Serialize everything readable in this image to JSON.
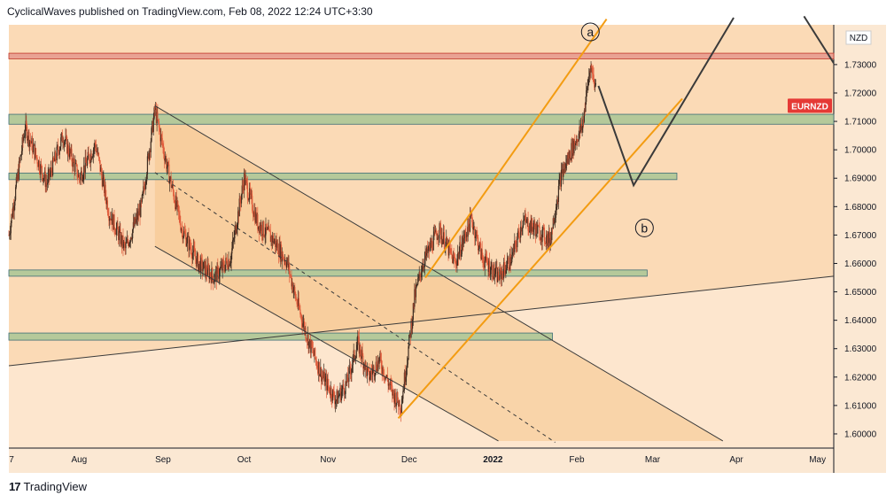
{
  "header": {
    "text": "CyclicalWaves published on TradingView.com, Feb 08, 2022 12:24 UTC+3:30"
  },
  "footer": {
    "brand": "TradingView",
    "logo": "tv-logo-icon"
  },
  "colors": {
    "background_band": "#fbd6ad",
    "zone_fill": "#f6c48a",
    "support_zone": "#b5c99a",
    "resistance_zone": "#e9a293",
    "channel_orange": "#f39c12",
    "wave_line": "#3a3a3a",
    "candle_up": "#3d2b20",
    "candle_down": "#e05a3a",
    "symbol_badge": "#e53935"
  },
  "chart_data": {
    "type": "candlestick",
    "symbol": "EURNZD",
    "currency": "NZD",
    "ylim": [
      1.595,
      1.744
    ],
    "y_ticks": [
      "1.60000",
      "1.61000",
      "1.62000",
      "1.63000",
      "1.64000",
      "1.65000",
      "1.66000",
      "1.67000",
      "1.68000",
      "1.69000",
      "1.70000",
      "1.71000",
      "1.72000",
      "1.73000"
    ],
    "x_ticks": [
      {
        "label": "7",
        "date": "2021-07-07"
      },
      {
        "label": "Aug",
        "date": "2021-08-01"
      },
      {
        "label": "Sep",
        "date": "2021-09-01"
      },
      {
        "label": "Oct",
        "date": "2021-10-01"
      },
      {
        "label": "Nov",
        "date": "2021-11-01"
      },
      {
        "label": "Dec",
        "date": "2021-12-01"
      },
      {
        "label": "2022",
        "date": "2022-01-01",
        "bold": true
      },
      {
        "label": "Feb",
        "date": "2022-02-01"
      },
      {
        "label": "Mar",
        "date": "2022-03-01"
      },
      {
        "label": "Apr",
        "date": "2022-04-01"
      },
      {
        "label": "May",
        "date": "2022-05-01"
      }
    ],
    "x_range": [
      "2021-07-06",
      "2022-05-07"
    ],
    "price_path": [
      [
        "2021-07-06",
        1.67
      ],
      [
        "2021-07-12",
        1.708
      ],
      [
        "2021-07-20",
        1.688
      ],
      [
        "2021-07-26",
        1.705
      ],
      [
        "2021-08-01",
        1.69
      ],
      [
        "2021-08-07",
        1.702
      ],
      [
        "2021-08-12",
        1.678
      ],
      [
        "2021-08-18",
        1.665
      ],
      [
        "2021-08-24",
        1.68
      ],
      [
        "2021-08-29",
        1.714
      ],
      [
        "2021-09-03",
        1.692
      ],
      [
        "2021-09-08",
        1.672
      ],
      [
        "2021-09-14",
        1.66
      ],
      [
        "2021-09-20",
        1.655
      ],
      [
        "2021-09-26",
        1.662
      ],
      [
        "2021-10-01",
        1.69
      ],
      [
        "2021-10-06",
        1.674
      ],
      [
        "2021-10-12",
        1.668
      ],
      [
        "2021-10-17",
        1.66
      ],
      [
        "2021-10-20",
        1.648
      ],
      [
        "2021-10-25",
        1.632
      ],
      [
        "2021-10-30",
        1.62
      ],
      [
        "2021-11-04",
        1.612
      ],
      [
        "2021-11-08",
        1.618
      ],
      [
        "2021-11-12",
        1.632
      ],
      [
        "2021-11-16",
        1.62
      ],
      [
        "2021-11-20",
        1.626
      ],
      [
        "2021-11-25",
        1.614
      ],
      [
        "2021-11-28",
        1.61
      ],
      [
        "2021-12-01",
        1.632
      ],
      [
        "2021-12-03",
        1.648
      ],
      [
        "2021-12-06",
        1.66
      ],
      [
        "2021-12-12",
        1.672
      ],
      [
        "2021-12-18",
        1.66
      ],
      [
        "2021-12-24",
        1.676
      ],
      [
        "2021-12-28",
        1.662
      ],
      [
        "2022-01-03",
        1.655
      ],
      [
        "2022-01-08",
        1.662
      ],
      [
        "2022-01-12",
        1.675
      ],
      [
        "2022-01-17",
        1.672
      ],
      [
        "2022-01-22",
        1.668
      ],
      [
        "2022-01-26",
        1.69
      ],
      [
        "2022-01-30",
        1.7
      ],
      [
        "2022-02-03",
        1.708
      ],
      [
        "2022-02-06",
        1.73
      ],
      [
        "2022-02-08",
        1.722
      ]
    ],
    "projection_points": [
      [
        "2022-02-09",
        1.7225
      ],
      [
        "2022-02-22",
        1.6875
      ],
      [
        "2022-03-31",
        1.7465
      ]
    ],
    "projection_tail": [
      [
        "2022-04-26",
        1.747
      ],
      [
        "2022-05-07",
        1.7305
      ]
    ],
    "labels": [
      {
        "text": "a",
        "date": "2022-02-06",
        "price": 1.7415
      },
      {
        "text": "b",
        "date": "2022-02-26",
        "price": 1.6725
      }
    ],
    "zones": [
      {
        "kind": "resistance",
        "top": 1.734,
        "bottom": 1.732,
        "start": "2021-07-06",
        "end": "2022-05-07"
      },
      {
        "kind": "support",
        "top": 1.7125,
        "bottom": 1.709,
        "start": "2021-07-06",
        "end": "2022-05-07"
      },
      {
        "kind": "support",
        "top": 1.6918,
        "bottom": 1.6895,
        "start": "2021-07-06",
        "end": "2022-03-10"
      },
      {
        "kind": "support",
        "top": 1.6577,
        "bottom": 1.6555,
        "start": "2021-07-06",
        "end": "2022-02-27"
      },
      {
        "kind": "support",
        "top": 1.6355,
        "bottom": 1.633,
        "start": "2021-07-06",
        "end": "2022-01-23"
      }
    ],
    "channels": [
      {
        "kind": "descending",
        "upper": [
          [
            "2021-08-29",
            1.7155
          ],
          [
            "2022-03-27",
            1.5975
          ]
        ],
        "lower": [
          [
            "2021-08-29",
            1.666
          ],
          [
            "2022-01-03",
            1.5975
          ]
        ]
      },
      {
        "kind": "ascending",
        "upper": [
          [
            "2021-12-07",
            1.655
          ],
          [
            "2022-02-12",
            1.746
          ]
        ],
        "lower": [
          [
            "2021-11-27",
            1.6055
          ],
          [
            "2022-03-12",
            1.718
          ]
        ]
      }
    ],
    "midline": [
      [
        "2021-08-29",
        1.692
      ],
      [
        "2022-01-24",
        1.597
      ]
    ],
    "trendline": [
      [
        "2021-07-06",
        1.624
      ],
      [
        "2022-05-07",
        1.6555
      ]
    ]
  }
}
